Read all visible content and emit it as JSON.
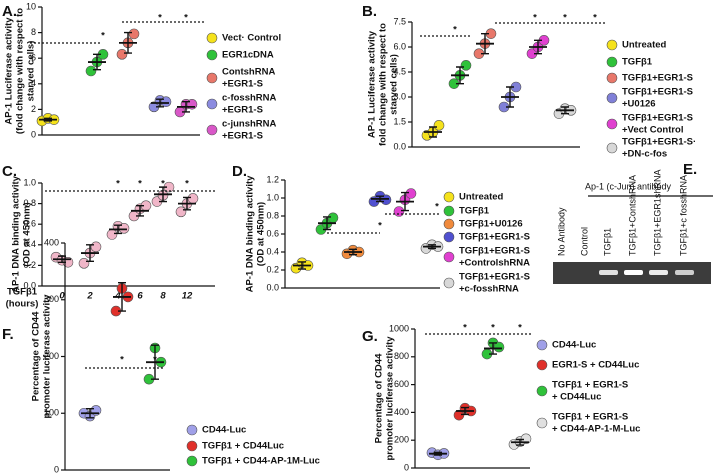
{
  "chart_data": [
    {
      "type": "dot",
      "panel": "A.",
      "ylabel": [
        "AP-1 Luciferase activity",
        "(fold change with respect to",
        "starved cells)"
      ],
      "ylim": [
        0,
        10
      ],
      "yticks": [
        0,
        2,
        4,
        6,
        8,
        10
      ],
      "annotations": [
        "*",
        "*",
        "*"
      ],
      "groups": [
        {
          "name": [
            "Vect· Control"
          ],
          "color": "#f5e21b",
          "values": [
            1.1,
            1.3,
            1.2
          ],
          "mean": 1.2,
          "error": 0.1
        },
        {
          "name": [
            "EGR1cDNA"
          ],
          "color": "#2fc23a",
          "values": [
            5.0,
            5.7,
            6.3
          ],
          "mean": 5.7,
          "error": 0.6
        },
        {
          "name": [
            "ContshRNA",
            "+EGR1-S"
          ],
          "color": "#e8776a",
          "values": [
            6.3,
            7.2,
            7.9
          ],
          "mean": 7.2,
          "error": 0.8
        },
        {
          "name": [
            "c-fosshRNA",
            "+EGR1-S"
          ],
          "color": "#8b8be0",
          "values": [
            2.2,
            2.7,
            2.6
          ],
          "mean": 2.5,
          "error": 0.3
        },
        {
          "name": [
            "c-junshRNA",
            "+EGR1-S"
          ],
          "color": "#d957c8",
          "values": [
            1.8,
            2.4,
            2.4
          ],
          "mean": 2.2,
          "error": 0.4
        }
      ]
    },
    {
      "type": "dot",
      "panel": "B.",
      "ylabel": [
        "AP-1 Luciferase activity",
        "fold change with respect to",
        "starved cells)"
      ],
      "ylim": [
        0,
        7.5
      ],
      "yticks": [
        {
          "value": 0,
          "label": "0.0"
        },
        {
          "value": 1.5,
          "label": "1.5"
        },
        {
          "value": 3,
          "label": "3.0"
        },
        {
          "value": 4.5,
          "label": "4.5"
        },
        {
          "value": 6,
          "label": "6.0"
        },
        {
          "value": 7.5,
          "label": "7.5"
        }
      ],
      "annotations": [
        "*",
        "*",
        "*",
        "*"
      ],
      "groups": [
        {
          "name": [
            "Untreated"
          ],
          "color": "#f5e21b",
          "values": [
            0.7,
            0.9,
            1.3
          ],
          "mean": 0.9,
          "error": 0.3
        },
        {
          "name": [
            "TGFβ1"
          ],
          "color": "#2fc23a",
          "values": [
            3.8,
            4.3,
            4.9
          ],
          "mean": 4.3,
          "error": 0.5
        },
        {
          "name": [
            "TGFβ1+EGR1-S"
          ],
          "color": "#e8776a",
          "values": [
            5.6,
            6.2,
            6.8
          ],
          "mean": 6.2,
          "error": 0.6
        },
        {
          "name": [
            "TGFβ1+EGR1-S",
            "+U0126"
          ],
          "color": "#8080d8",
          "values": [
            2.4,
            3.0,
            3.6
          ],
          "mean": 3.0,
          "error": 0.6
        },
        {
          "name": [
            "TGFβ1+EGR1-S",
            "+Vect Control"
          ],
          "color": "#e040d0",
          "values": [
            5.6,
            6.0,
            6.4
          ],
          "mean": 6.0,
          "error": 0.4
        },
        {
          "name": [
            "TGFβ1+EGR1-S·",
            "+DN-c-fos"
          ],
          "color": "#d8d8d8",
          "values": [
            2.0,
            2.3,
            2.2
          ],
          "mean": 2.2,
          "error": 0.2
        }
      ]
    },
    {
      "type": "dot",
      "panel": "C.",
      "ylabel": [
        "AP-1 DNA binding activity",
        "(OD at 450nm)"
      ],
      "xlabel": [
        "TGFβ1",
        "(hours)"
      ],
      "categories": [
        "0",
        "2",
        "4",
        "6",
        "8",
        "12"
      ],
      "ylim": [
        0,
        1
      ],
      "yticks": [
        {
          "value": 0,
          "label": "0.0"
        },
        {
          "value": 0.2,
          "label": "0.2"
        },
        {
          "value": 0.4,
          "label": "0.4"
        },
        {
          "value": 0.6,
          "label": "0.6"
        },
        {
          "value": 0.8,
          "label": "0.8"
        },
        {
          "value": 1,
          "label": "1.0"
        }
      ],
      "annotations": [
        "*",
        "*",
        "*",
        "*"
      ],
      "groups": [
        {
          "color": "#f0b6c8",
          "values": [
            0.28,
            0.25,
            0.23
          ],
          "mean": 0.26,
          "error": 0.03
        },
        {
          "color": "#f0b6c8",
          "values": [
            0.22,
            0.32,
            0.38
          ],
          "mean": 0.32,
          "error": 0.08
        },
        {
          "color": "#f0b6c8",
          "values": [
            0.5,
            0.58,
            0.56
          ],
          "mean": 0.55,
          "error": 0.04
        },
        {
          "color": "#f0b6c8",
          "values": [
            0.68,
            0.75,
            0.78
          ],
          "mean": 0.73,
          "error": 0.05
        },
        {
          "color": "#f0b6c8",
          "values": [
            0.82,
            0.88,
            0.96
          ],
          "mean": 0.89,
          "error": 0.07
        },
        {
          "color": "#f0b6c8",
          "values": [
            0.72,
            0.8,
            0.85
          ],
          "mean": 0.8,
          "error": 0.06
        }
      ]
    },
    {
      "type": "dot",
      "panel": "D.",
      "ylabel": [
        "AP-1 DNA binding activity",
        "(OD at 450nm)"
      ],
      "ylim": [
        0,
        1.2
      ],
      "yticks": [
        {
          "value": 0,
          "label": "0.0"
        },
        {
          "value": 0.2,
          "label": "0.2"
        },
        {
          "value": 0.4,
          "label": "0.4"
        },
        {
          "value": 0.6,
          "label": "0.6"
        },
        {
          "value": 0.8,
          "label": "0.8"
        },
        {
          "value": 1,
          "label": "1.0"
        },
        {
          "value": 1.2,
          "label": "1.2"
        }
      ],
      "annotations": [
        "*",
        "*"
      ],
      "groups": [
        {
          "name": [
            "Untreated"
          ],
          "color": "#f5e21b",
          "values": [
            0.22,
            0.28,
            0.25
          ],
          "mean": 0.25,
          "error": 0.04
        },
        {
          "name": [
            "TGFβ1"
          ],
          "color": "#2fc23a",
          "values": [
            0.65,
            0.72,
            0.78
          ],
          "mean": 0.72,
          "error": 0.07
        },
        {
          "name": [
            "TGFβ1+U0126"
          ],
          "color": "#f08a3c",
          "values": [
            0.38,
            0.42,
            0.4
          ],
          "mean": 0.4,
          "error": 0.03
        },
        {
          "name": [
            "TGFβ1+EGR1-S"
          ],
          "color": "#5050d0",
          "values": [
            0.96,
            1.02,
            0.98
          ],
          "mean": 0.99,
          "error": 0.03
        },
        {
          "name": [
            "TGFβ1+EGR1-S",
            "+ControlshRNA"
          ],
          "color": "#e040d0",
          "values": [
            0.85,
            0.98,
            1.05
          ],
          "mean": 0.96,
          "error": 0.1
        },
        {
          "name": [
            "TGFβ1+EGR1-S",
            "+c-fosshRNA"
          ],
          "color": "#d8d8d8",
          "values": [
            0.44,
            0.48,
            0.46
          ],
          "mean": 0.46,
          "error": 0.02
        }
      ]
    },
    {
      "type": "gel",
      "panel": "E.",
      "title": "Ap-1 (c-Jun) antibody",
      "lanes": [
        "No Antibody",
        "Control",
        "TGFβ1",
        "TGFβ1+ContshRNA",
        "TGFβ1+EGR1shRNA",
        "TGFβ1+c fosshRNA"
      ]
    },
    {
      "type": "dot",
      "panel": "F.",
      "ylabel": [
        "Percentage of CD44",
        "promoter luciferase activity"
      ],
      "ylim": [
        0,
        400
      ],
      "yticks": [
        0,
        100,
        200,
        300,
        400
      ],
      "annotations": [
        "*",
        "*"
      ],
      "groups": [
        {
          "name": [
            "CD44-Luc"
          ],
          "color": "#a0a0e8",
          "values": [
            100,
            95,
            105
          ],
          "mean": 100,
          "error": 8
        },
        {
          "name": [
            "TGFβ1 + CD44Luc"
          ],
          "color": "#e0302a",
          "values": [
            280,
            320,
            305
          ],
          "mean": 305,
          "error": 25
        },
        {
          "name": [
            "TGFβ1 + CD44-AP-1M-Luc"
          ],
          "color": "#2fc23a",
          "values": [
            160,
            215,
            190
          ],
          "mean": 190,
          "error": 30
        }
      ]
    },
    {
      "type": "dot",
      "panel": "G.",
      "ylabel": [
        "Percentage of CD44",
        "promoter luciferase activity"
      ],
      "ylim": [
        0,
        1000
      ],
      "yticks": [
        0,
        200,
        400,
        600,
        800,
        1000
      ],
      "annotations": [
        "*",
        "*",
        "*"
      ],
      "groups": [
        {
          "name": [
            "CD44-Luc"
          ],
          "color": "#a0a0e8",
          "values": [
            110,
            95,
            105
          ],
          "mean": 103,
          "error": 10
        },
        {
          "name": [
            "EGR1-S + CD44Luc"
          ],
          "color": "#e0302a",
          "values": [
            380,
            430,
            410
          ],
          "mean": 410,
          "error": 25
        },
        {
          "name": [
            "TGFβ1 + EGR1-S",
            "+ CD44Luc"
          ],
          "color": "#2fc23a",
          "values": [
            820,
            900,
            870
          ],
          "mean": 860,
          "error": 40
        },
        {
          "name": [
            "TGFβ1 + EGR1-S",
            "+ CD44-AP-1-M-Luc"
          ],
          "color": "#e0e0e0",
          "values": [
            170,
            190,
            210
          ],
          "mean": 185,
          "error": 20
        }
      ]
    }
  ]
}
